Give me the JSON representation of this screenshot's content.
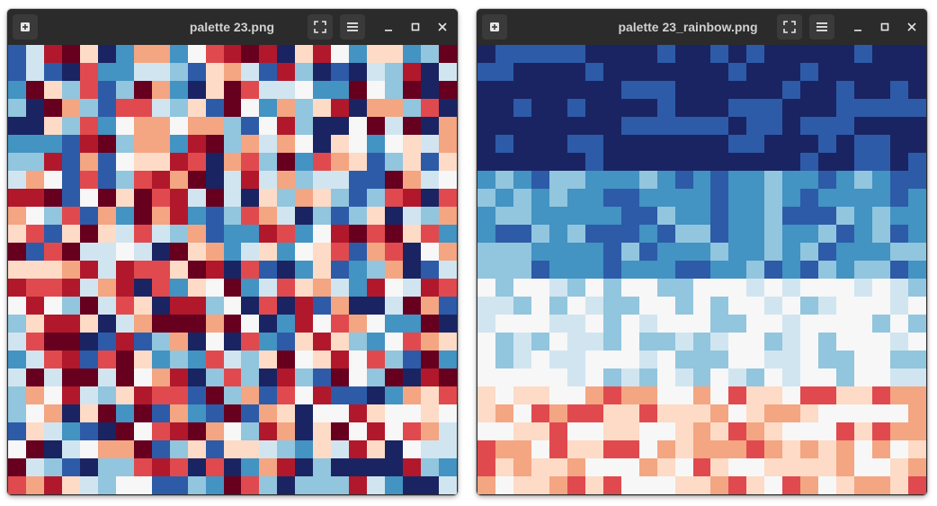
{
  "palette": {
    "dark_red": "#67001f",
    "red": "#b2182b",
    "red_light": "#e04a4e",
    "salmon": "#f4a582",
    "peach": "#fddbc7",
    "white": "#f7f7f7",
    "blue_pale": "#d1e5f0",
    "blue_light": "#92c5de",
    "blue_mid": "#4393c3",
    "blue": "#2d5ba8",
    "navy": "#1a2462"
  },
  "windows": [
    {
      "title": "palette 23.png",
      "icons": {
        "new_tab": "plus-icon",
        "fullscreen": "fullscreen-icon",
        "menu": "hamburger-icon",
        "minimize": "minimize-icon",
        "maximize": "maximize-icon",
        "close": "close-icon"
      }
    },
    {
      "title": "palette 23_rainbow.png",
      "icons": {
        "new_tab": "plus-icon",
        "fullscreen": "fullscreen-icon",
        "menu": "hamburger-icon",
        "minimize": "minimize-icon",
        "maximize": "maximize-icon",
        "close": "close-icon"
      }
    }
  ]
}
